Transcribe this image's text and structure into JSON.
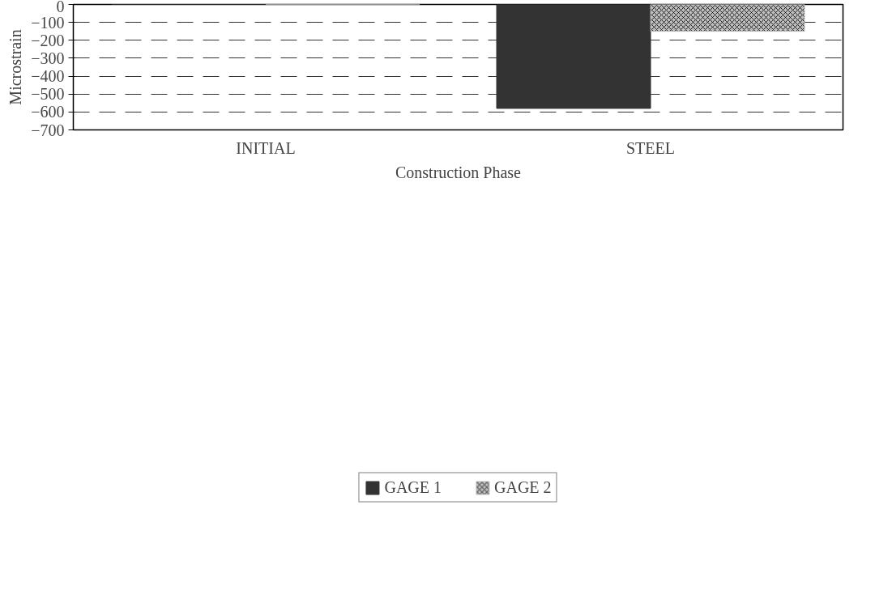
{
  "chart_data": {
    "type": "bar",
    "xlabel": "Construction Phase",
    "ylabel": "Microstrain",
    "categories": [
      "INITIAL",
      "STEEL"
    ],
    "series": [
      {
        "name": "GAGE 1",
        "color": "#333333",
        "values": [
          0,
          -580
        ]
      },
      {
        "name": "GAGE 2",
        "color": "#bdbdbd",
        "values": [
          0,
          -150
        ]
      }
    ],
    "ylim": [
      -700,
      0
    ],
    "yticks": [
      0,
      -100,
      -200,
      -300,
      -400,
      -500,
      -600,
      -700
    ],
    "grid": "y",
    "legend": "bottom"
  }
}
